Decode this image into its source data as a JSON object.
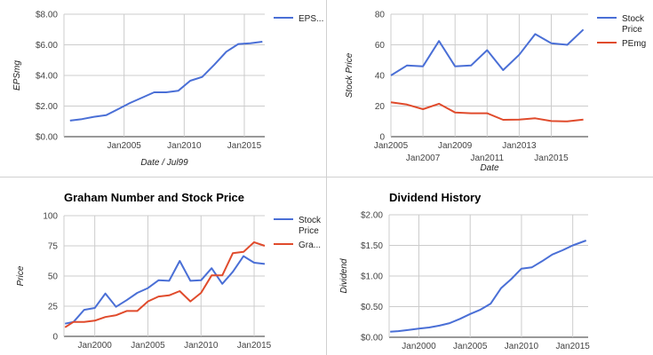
{
  "chart_data": [
    {
      "type": "line",
      "title": "",
      "xlabel": "Date / Jul99",
      "ylabel": "EPSmg",
      "xlim": [
        2000.0,
        2016.7
      ],
      "ylim": [
        0,
        8
      ],
      "xticks": [
        {
          "v": 2005,
          "label": "Jan2005"
        },
        {
          "v": 2010,
          "label": "Jan2010"
        },
        {
          "v": 2015,
          "label": "Jan2015"
        }
      ],
      "yticks": [
        {
          "v": 0,
          "label": "$0.00"
        },
        {
          "v": 2,
          "label": "$2.00"
        },
        {
          "v": 4,
          "label": "$4.00"
        },
        {
          "v": 6,
          "label": "$6.00"
        },
        {
          "v": 8,
          "label": "$8.00"
        }
      ],
      "legend": "top-right",
      "series": [
        {
          "name": "EPS...",
          "color": "#4a6fd6",
          "x": [
            2000.5,
            2001.5,
            2002.5,
            2003.5,
            2004.5,
            2005.5,
            2006.5,
            2007.5,
            2008.5,
            2009.5,
            2010.5,
            2011.5,
            2012.5,
            2013.5,
            2014.5,
            2015.5,
            2016.5
          ],
          "y": [
            1.05,
            1.15,
            1.3,
            1.4,
            1.8,
            2.2,
            2.55,
            2.9,
            2.9,
            3.0,
            3.65,
            3.9,
            4.7,
            5.55,
            6.05,
            6.1,
            6.2
          ]
        }
      ]
    },
    {
      "type": "line",
      "title": "",
      "xlabel": "Date",
      "ylabel": "Stock Price",
      "xlim": [
        2005,
        2017.3
      ],
      "ylim": [
        0,
        80
      ],
      "xticks": [
        {
          "v": 2005,
          "label": "Jan2005",
          "row": 1
        },
        {
          "v": 2007,
          "label": "Jan2007",
          "row": 2
        },
        {
          "v": 2009,
          "label": "Jan2009",
          "row": 1
        },
        {
          "v": 2011,
          "label": "Jan2011",
          "row": 2
        },
        {
          "v": 2013,
          "label": "Jan2013",
          "row": 1
        },
        {
          "v": 2015,
          "label": "Jan2015",
          "row": 2
        }
      ],
      "yticks": [
        {
          "v": 0,
          "label": "0"
        },
        {
          "v": 20,
          "label": "20"
        },
        {
          "v": 40,
          "label": "40"
        },
        {
          "v": 60,
          "label": "60"
        },
        {
          "v": 80,
          "label": "80"
        }
      ],
      "legend": "top-right",
      "series": [
        {
          "name": "Stock Price",
          "color": "#4a6fd6",
          "x": [
            2005,
            2006,
            2007,
            2008,
            2009,
            2010,
            2011,
            2012,
            2013,
            2014,
            2015,
            2016,
            2017
          ],
          "y": [
            40,
            46.5,
            46,
            62.5,
            46,
            46.5,
            56.5,
            43.5,
            53.5,
            67,
            61,
            60,
            70
          ]
        },
        {
          "name": "PEmg",
          "color": "#e04b2c",
          "x": [
            2005,
            2006,
            2007,
            2008,
            2009,
            2010,
            2011,
            2012,
            2013,
            2014,
            2015,
            2016,
            2017
          ],
          "y": [
            22.5,
            21,
            18,
            21.5,
            15.8,
            15.3,
            15.3,
            11,
            11.2,
            12,
            10.2,
            10,
            11.2
          ]
        }
      ]
    },
    {
      "type": "line",
      "title": "Graham Number and Stock Price",
      "xlabel": "",
      "ylabel": "Price",
      "xlim": [
        1997.1,
        2016
      ],
      "ylim": [
        0,
        100
      ],
      "xticks": [
        {
          "v": 2000,
          "label": "Jan2000"
        },
        {
          "v": 2005,
          "label": "Jan2005"
        },
        {
          "v": 2010,
          "label": "Jan2010"
        },
        {
          "v": 2015,
          "label": "Jan2015"
        }
      ],
      "yticks": [
        {
          "v": 0,
          "label": "0"
        },
        {
          "v": 25,
          "label": "25"
        },
        {
          "v": 50,
          "label": "50"
        },
        {
          "v": 75,
          "label": "75"
        },
        {
          "v": 100,
          "label": "100"
        }
      ],
      "legend": "top-right",
      "series": [
        {
          "name": "Stock Price",
          "color": "#4a6fd6",
          "x": [
            1997.2,
            1998,
            1999,
            2000,
            2001,
            2002,
            2003,
            2004,
            2005,
            2006,
            2007,
            2008,
            2009,
            2010,
            2011,
            2012,
            2013,
            2014,
            2015,
            2016
          ],
          "y": [
            10.5,
            12,
            22,
            23.5,
            35.5,
            24.5,
            30,
            36,
            40,
            46.5,
            46,
            62.5,
            46,
            46.5,
            56.5,
            43.5,
            53.5,
            66.5,
            61,
            60
          ]
        },
        {
          "name": "Gra...",
          "color": "#e04b2c",
          "x": [
            1997.2,
            1998,
            1999,
            2000,
            2001,
            2002,
            2003,
            2004,
            2005,
            2006,
            2007,
            2008,
            2009,
            2010,
            2011,
            2012,
            2013,
            2014,
            2015,
            2016
          ],
          "y": [
            7.5,
            12,
            12,
            13,
            16,
            17.5,
            21,
            21,
            29,
            33,
            34,
            37.5,
            29,
            36,
            50.5,
            50.5,
            69,
            70,
            78,
            75
          ]
        }
      ]
    },
    {
      "type": "line",
      "title": "Dividend History",
      "xlabel": "",
      "ylabel": "Dividend",
      "xlim": [
        1997.1,
        2016.5
      ],
      "ylim": [
        0,
        2
      ],
      "xticks": [
        {
          "v": 2000,
          "label": "Jan2000"
        },
        {
          "v": 2005,
          "label": "Jan2005"
        },
        {
          "v": 2010,
          "label": "Jan2010"
        },
        {
          "v": 2015,
          "label": "Jan2015"
        }
      ],
      "yticks": [
        {
          "v": 0,
          "label": "$0.00"
        },
        {
          "v": 0.5,
          "label": "$0.50"
        },
        {
          "v": 1,
          "label": "$1.00"
        },
        {
          "v": 1.5,
          "label": "$1.50"
        },
        {
          "v": 2,
          "label": "$2.00"
        }
      ],
      "legend": "none",
      "series": [
        {
          "name": "",
          "color": "#4a6fd6",
          "x": [
            1997.2,
            1998,
            1999,
            2000,
            2001,
            2002,
            2003,
            2004,
            2005,
            2006,
            2007,
            2008,
            2009,
            2010,
            2011,
            2012,
            2013,
            2014,
            2015,
            2016.3
          ],
          "y": [
            0.09,
            0.1,
            0.12,
            0.14,
            0.16,
            0.19,
            0.23,
            0.3,
            0.38,
            0.45,
            0.55,
            0.8,
            0.95,
            1.12,
            1.14,
            1.24,
            1.35,
            1.42,
            1.5,
            1.58
          ]
        }
      ]
    }
  ]
}
